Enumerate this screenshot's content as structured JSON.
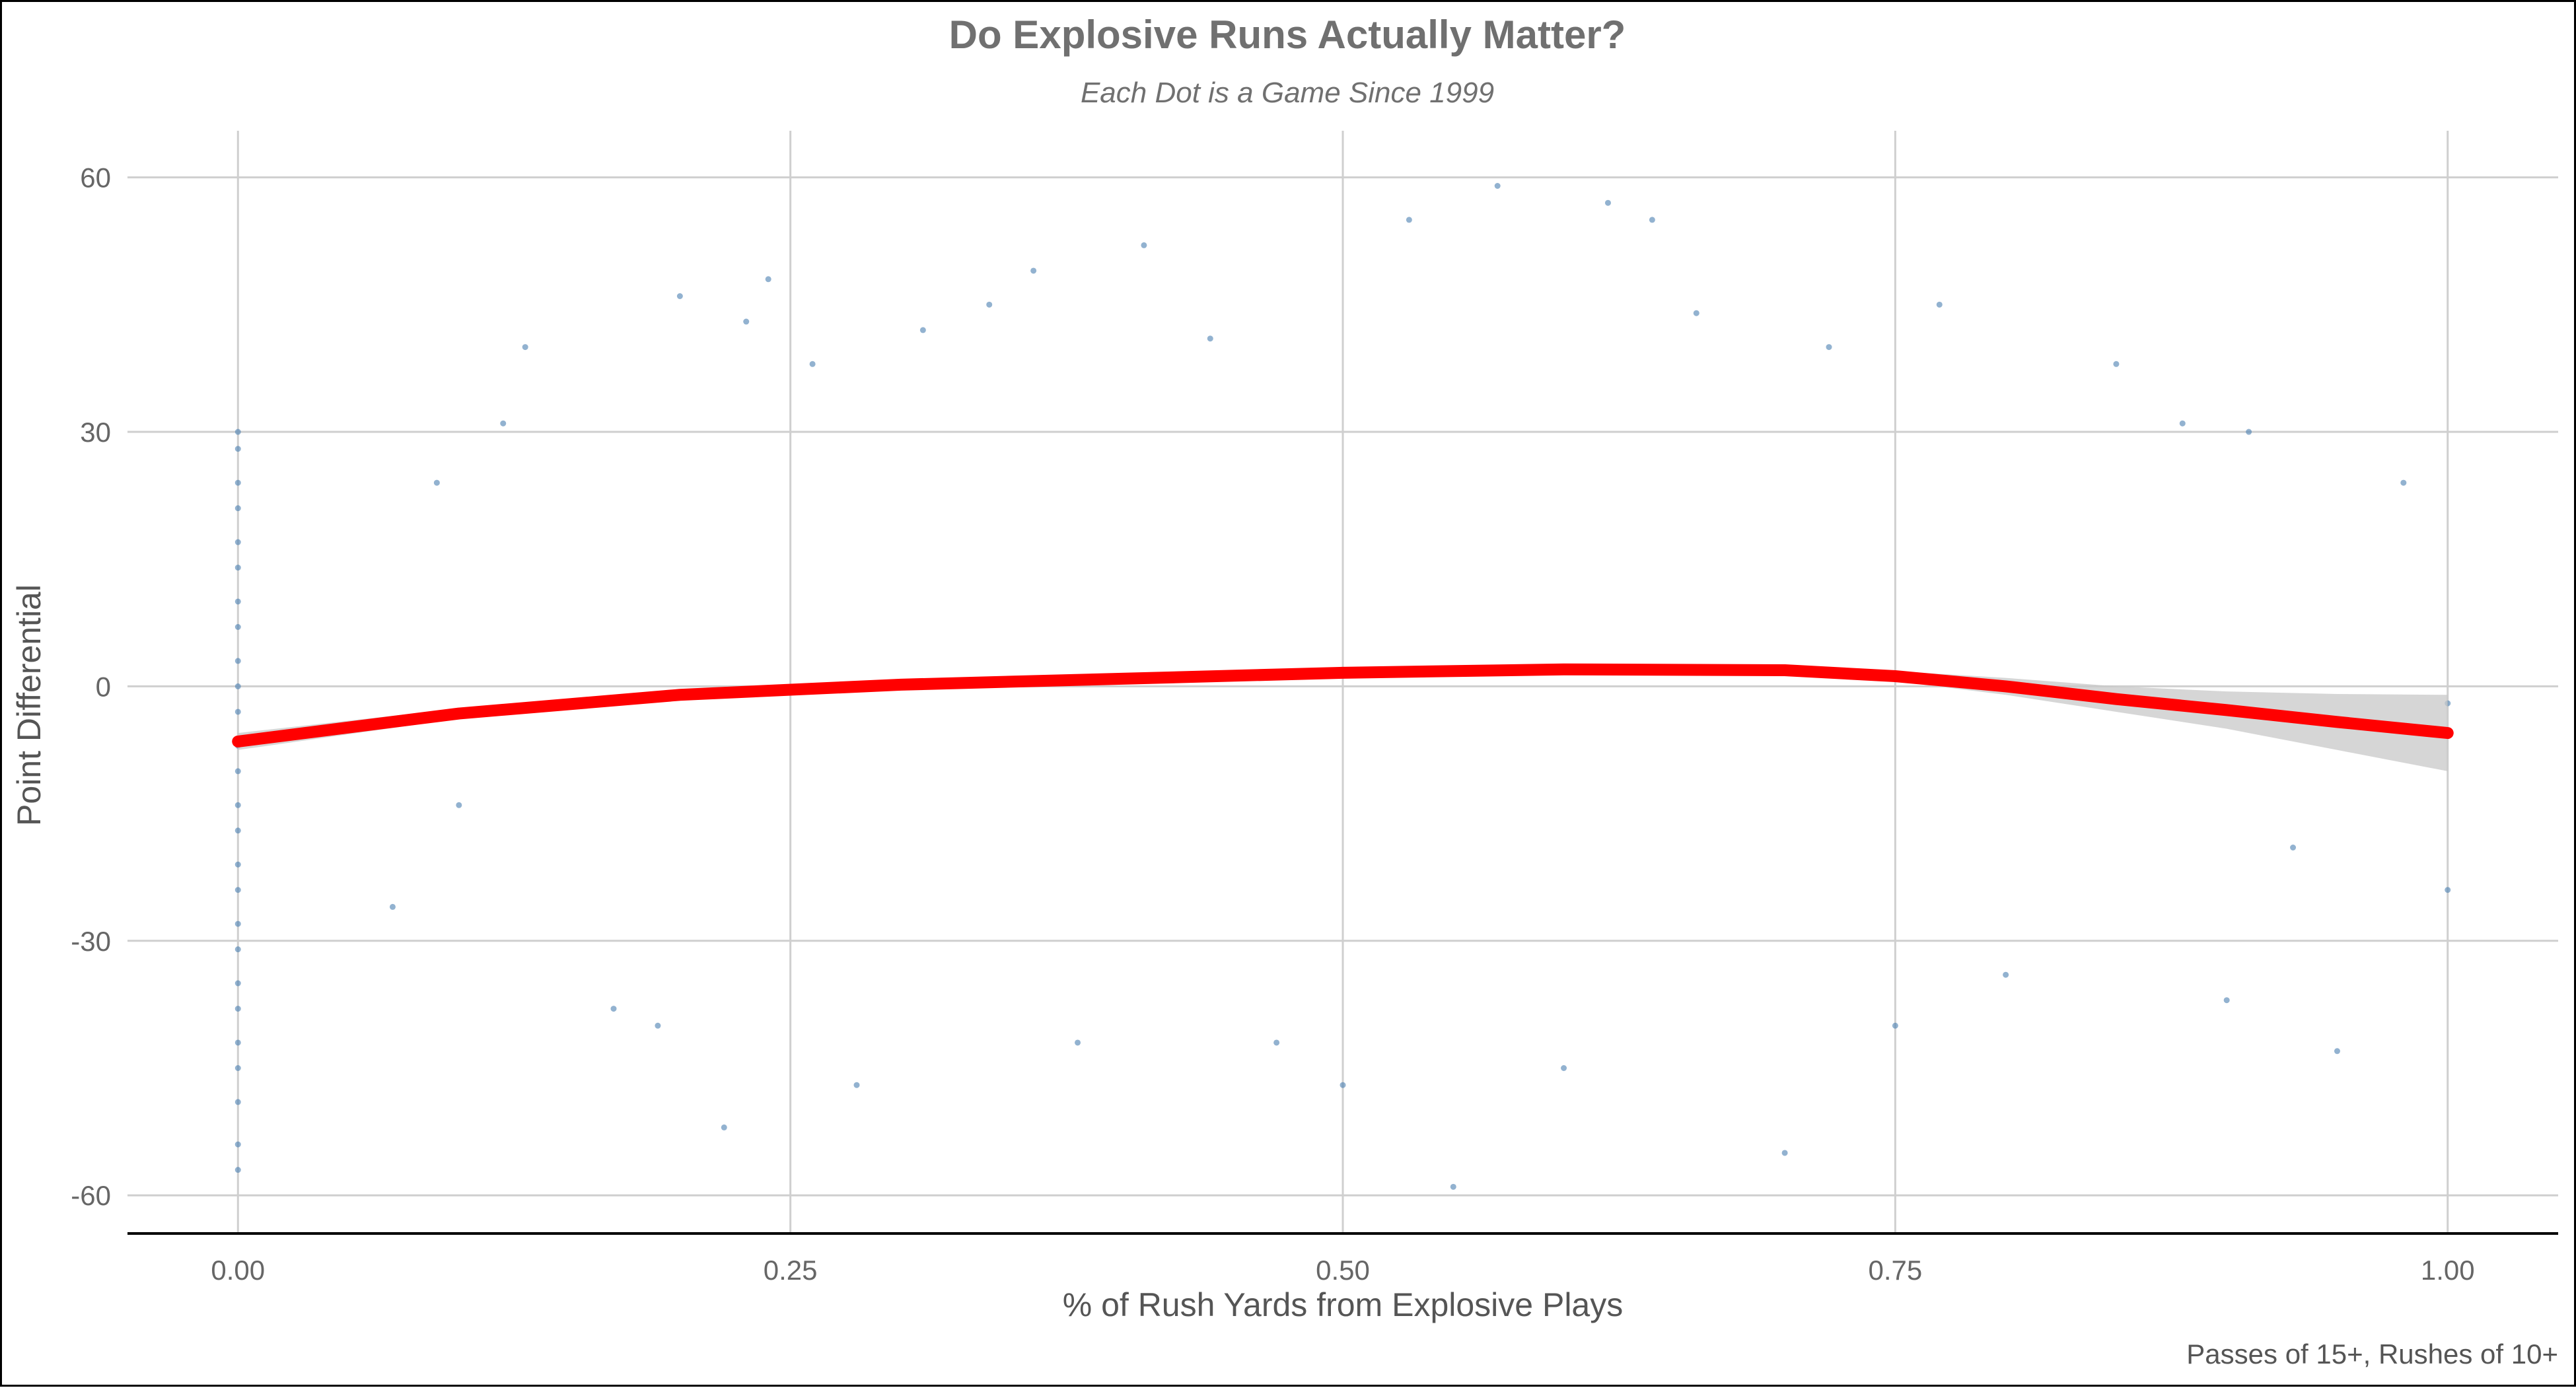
{
  "chart_data": {
    "type": "scatter",
    "title": "Do Explosive Runs Actually Matter?",
    "subtitle": "Each Dot is a Game Since 1999",
    "xlabel": "% of Rush Yards from Explosive Plays",
    "ylabel": "Point Differential",
    "caption": "Passes of 15+, Rushes of 10+",
    "xlim": [
      -0.05,
      1.05
    ],
    "ylim": [
      -64.5,
      65.5
    ],
    "xticks": [
      0.0,
      0.25,
      0.5,
      0.75,
      1.0
    ],
    "xtick_labels": [
      "0.00",
      "0.25",
      "0.50",
      "0.75",
      "1.00"
    ],
    "yticks": [
      -60,
      -30,
      0,
      30,
      60
    ],
    "ytick_labels": [
      "-60",
      "-30",
      "0",
      "30",
      "60"
    ],
    "grid": true,
    "point_color": "#4a7fb0",
    "smooth_color": "#ff0000",
    "band_color": "#c8c8c8",
    "smooth_curve": {
      "x": [
        0.0,
        0.1,
        0.2,
        0.3,
        0.4,
        0.5,
        0.6,
        0.7,
        0.75,
        0.8,
        0.85,
        0.9,
        0.95,
        1.0
      ],
      "y": [
        -6.5,
        -3.2,
        -1.0,
        0.2,
        0.9,
        1.6,
        2.0,
        1.9,
        1.2,
        0.0,
        -1.5,
        -2.8,
        -4.2,
        -5.5
      ],
      "lower": [
        -7.5,
        -3.8,
        -1.4,
        -0.2,
        0.5,
        1.2,
        1.6,
        1.4,
        0.6,
        -1.0,
        -3.0,
        -5.0,
        -7.5,
        -10.0
      ],
      "upper": [
        -5.5,
        -2.6,
        -0.6,
        0.6,
        1.3,
        2.0,
        2.4,
        2.4,
        1.8,
        1.0,
        0.0,
        -0.6,
        -0.9,
        -1.0
      ]
    },
    "points": [
      [
        0.0,
        -57
      ],
      [
        0.0,
        -54
      ],
      [
        0.0,
        -49
      ],
      [
        0.0,
        -45
      ],
      [
        0.0,
        -42
      ],
      [
        0.0,
        -38
      ],
      [
        0.0,
        -35
      ],
      [
        0.0,
        -31
      ],
      [
        0.0,
        -28
      ],
      [
        0.0,
        -24
      ],
      [
        0.0,
        -21
      ],
      [
        0.0,
        -17
      ],
      [
        0.0,
        -14
      ],
      [
        0.0,
        -10
      ],
      [
        0.0,
        -7
      ],
      [
        0.0,
        -3
      ],
      [
        0.0,
        0
      ],
      [
        0.0,
        3
      ],
      [
        0.0,
        7
      ],
      [
        0.0,
        10
      ],
      [
        0.0,
        14
      ],
      [
        0.0,
        17
      ],
      [
        0.0,
        21
      ],
      [
        0.0,
        24
      ],
      [
        0.0,
        28
      ],
      [
        0.0,
        30
      ],
      [
        0.07,
        -26
      ],
      [
        0.09,
        24
      ],
      [
        0.1,
        -14
      ],
      [
        0.12,
        31
      ],
      [
        0.13,
        40
      ],
      [
        0.17,
        -38
      ],
      [
        0.19,
        -40
      ],
      [
        0.2,
        46
      ],
      [
        0.22,
        -52
      ],
      [
        0.23,
        43
      ],
      [
        0.24,
        48
      ],
      [
        0.26,
        38
      ],
      [
        0.28,
        -47
      ],
      [
        0.31,
        42
      ],
      [
        0.34,
        45
      ],
      [
        0.36,
        49
      ],
      [
        0.38,
        -42
      ],
      [
        0.41,
        52
      ],
      [
        0.44,
        41
      ],
      [
        0.47,
        -42
      ],
      [
        0.5,
        -47
      ],
      [
        0.53,
        55
      ],
      [
        0.55,
        -59
      ],
      [
        0.57,
        59
      ],
      [
        0.6,
        -45
      ],
      [
        0.62,
        57
      ],
      [
        0.64,
        55
      ],
      [
        0.66,
        44
      ],
      [
        0.7,
        -55
      ],
      [
        0.72,
        40
      ],
      [
        0.75,
        -40
      ],
      [
        0.77,
        45
      ],
      [
        0.8,
        -34
      ],
      [
        0.85,
        38
      ],
      [
        0.88,
        31
      ],
      [
        0.91,
        30
      ],
      [
        0.9,
        -37
      ],
      [
        0.95,
        -43
      ],
      [
        0.98,
        24
      ],
      [
        1.0,
        -2
      ],
      [
        1.0,
        -24
      ],
      [
        0.93,
        -19
      ]
    ]
  }
}
